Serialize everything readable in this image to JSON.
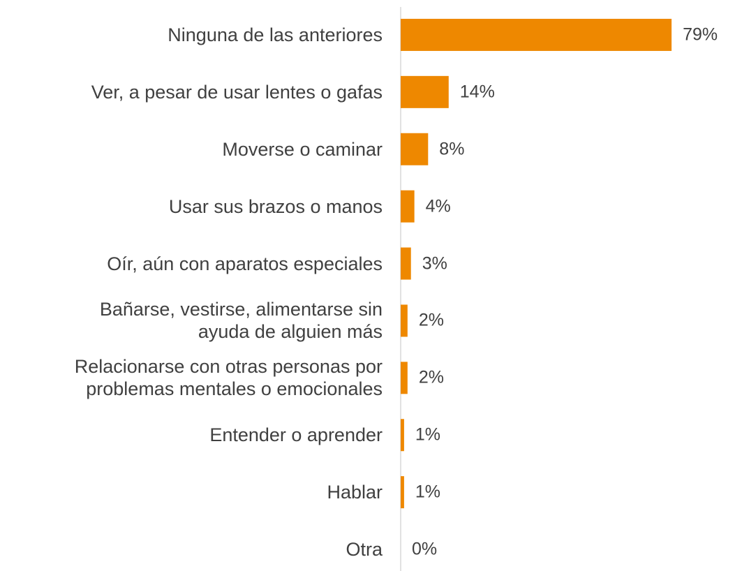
{
  "chart_data": {
    "type": "barh",
    "categories": [
      "Ninguna de las anteriores",
      "Ver, a pesar de usar lentes o gafas",
      "Moverse o caminar",
      "Usar sus brazos o manos",
      "Oír, aún con aparatos especiales",
      "Bañarse, vestirse, alimentarse sin\nayuda de alguien más",
      "Relacionarse con otras personas por\nproblemas mentales o emocionales",
      "Entender o aprender",
      "Hablar",
      "Otra"
    ],
    "values": [
      79,
      14,
      8,
      4,
      3,
      2,
      2,
      1,
      1,
      0
    ],
    "value_labels": [
      "79%",
      "14%",
      "8%",
      "4%",
      "3%",
      "2%",
      "2%",
      "1%",
      "1%",
      "0%"
    ],
    "color": "#ee8800",
    "xlim": [
      0,
      80
    ]
  }
}
